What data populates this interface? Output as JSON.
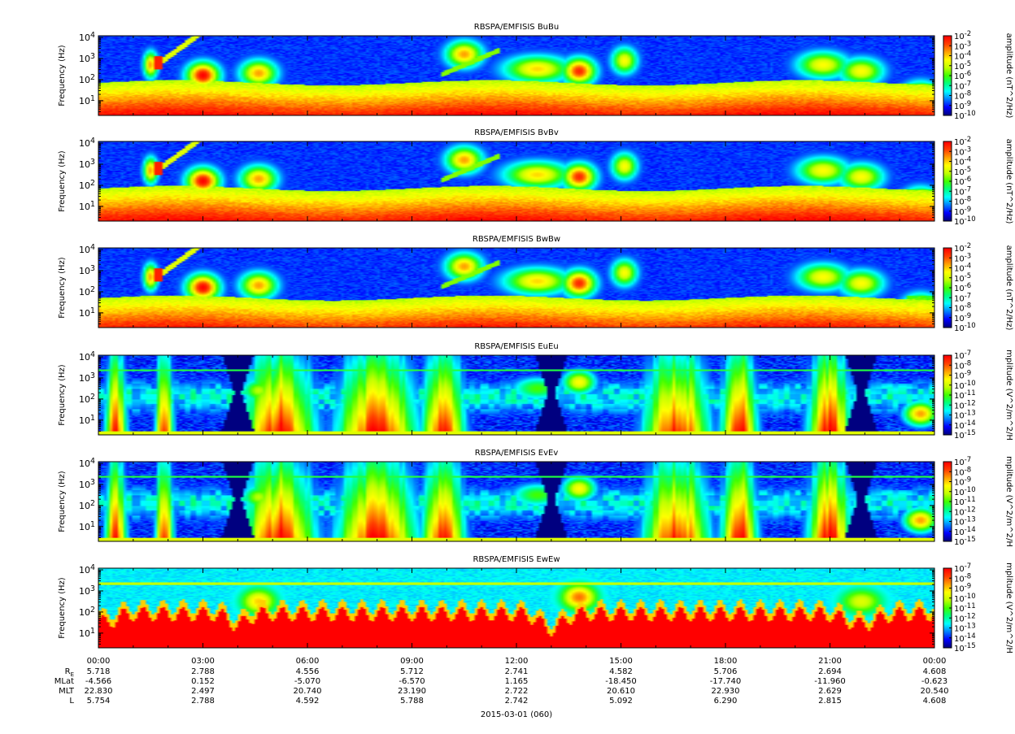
{
  "chart_data": {
    "type": "heatmap",
    "xaxis": {
      "range_hours": [
        0,
        24
      ],
      "tick_labels": [
        "00:00",
        "03:00",
        "06:00",
        "09:00",
        "12:00",
        "15:00",
        "18:00",
        "21:00",
        "00:00"
      ],
      "date_label": "2015-03-01 (060)"
    },
    "ephemeris": {
      "row_labels": [
        "R",
        "MLat",
        "MLT",
        "L"
      ],
      "re_subscript": "E",
      "values": [
        [
          "5.718",
          "2.788",
          "4.556",
          "5.712",
          "2.741",
          "4.582",
          "5.706",
          "2.694",
          "4.608"
        ],
        [
          "-4.566",
          "0.152",
          "-5.070",
          "-6.570",
          "1.165",
          "-18.450",
          "-17.740",
          "-11.960",
          "-0.623"
        ],
        [
          "22.830",
          "2.497",
          "20.740",
          "23.190",
          "2.722",
          "20.610",
          "22.930",
          "2.629",
          "20.540"
        ],
        [
          "5.754",
          "2.788",
          "4.592",
          "5.788",
          "2.742",
          "5.092",
          "6.290",
          "2.815",
          "4.608"
        ]
      ]
    },
    "panels": [
      {
        "title": "RBSPA/EMFISIS  BuBu",
        "ylabel": "Frequency (Hz)",
        "ylog": true,
        "yrange": [
          2,
          12000
        ],
        "cbar_label": "amplitude (nT^2/Hz)",
        "cbar_range_exp": [
          -10,
          -2
        ],
        "cbar_ticks": [
          "10^-2",
          "10^-3",
          "10^-4",
          "10^-5",
          "10^-6",
          "10^-7",
          "10^-8",
          "10^-9",
          "10^-10"
        ],
        "kind": "B"
      },
      {
        "title": "RBSPA/EMFISIS  BvBv",
        "ylabel": "Frequency (Hz)",
        "ylog": true,
        "yrange": [
          2,
          12000
        ],
        "cbar_label": "amplitude (nT^2/Hz)",
        "cbar_range_exp": [
          -10,
          -2
        ],
        "cbar_ticks": [
          "10^-2",
          "10^-3",
          "10^-4",
          "10^-5",
          "10^-6",
          "10^-7",
          "10^-8",
          "10^-9",
          "10^-10"
        ],
        "kind": "B"
      },
      {
        "title": "RBSPA/EMFISIS  BwBw",
        "ylabel": "Frequency (Hz)",
        "ylog": true,
        "yrange": [
          2,
          12000
        ],
        "cbar_label": "amplitude (nT^2/Hz)",
        "cbar_range_exp": [
          -10,
          -2
        ],
        "cbar_ticks": [
          "10^-2",
          "10^-3",
          "10^-4",
          "10^-5",
          "10^-6",
          "10^-7",
          "10^-8",
          "10^-9",
          "10^-10"
        ],
        "kind": "B"
      },
      {
        "title": "RBSPA/EMFISIS  EuEu",
        "ylabel": "Frequency (Hz)",
        "ylog": true,
        "yrange": [
          2,
          12000
        ],
        "cbar_label": "mplitude (V^2/m^2/H",
        "cbar_range_exp": [
          -15,
          -7
        ],
        "cbar_ticks": [
          "10^-7",
          "10^-8",
          "10^-9",
          "10^-10",
          "10^-11",
          "10^-12",
          "10^-13",
          "10^-14",
          "10^-15"
        ],
        "kind": "E"
      },
      {
        "title": "RBSPA/EMFISIS  EvEv",
        "ylabel": "Frequency (Hz)",
        "ylog": true,
        "yrange": [
          2,
          12000
        ],
        "cbar_label": "mplitude (V^2/m^2/H",
        "cbar_range_exp": [
          -15,
          -7
        ],
        "cbar_ticks": [
          "10^-7",
          "10^-8",
          "10^-9",
          "10^-10",
          "10^-11",
          "10^-12",
          "10^-13",
          "10^-14",
          "10^-15"
        ],
        "kind": "E"
      },
      {
        "title": "RBSPA/EMFISIS  EwEw",
        "ylabel": "Frequency (Hz)",
        "ylog": true,
        "yrange": [
          2,
          12000
        ],
        "cbar_label": "mplitude (V^2/m^2/H",
        "cbar_range_exp": [
          -15,
          -7
        ],
        "cbar_ticks": [
          "10^-7",
          "10^-8",
          "10^-9",
          "10^-10",
          "10^-11",
          "10^-12",
          "10^-13",
          "10^-14",
          "10^-15"
        ],
        "kind": "Ew"
      }
    ],
    "ytick_labels": [
      "10^1",
      "10^2",
      "10^3",
      "10^4"
    ],
    "colormap": [
      "#000080",
      "#0000ff",
      "#0080ff",
      "#00ffff",
      "#00ff80",
      "#40ff00",
      "#c0ff00",
      "#ffff00",
      "#ffa000",
      "#ff4000",
      "#ff0000"
    ]
  }
}
